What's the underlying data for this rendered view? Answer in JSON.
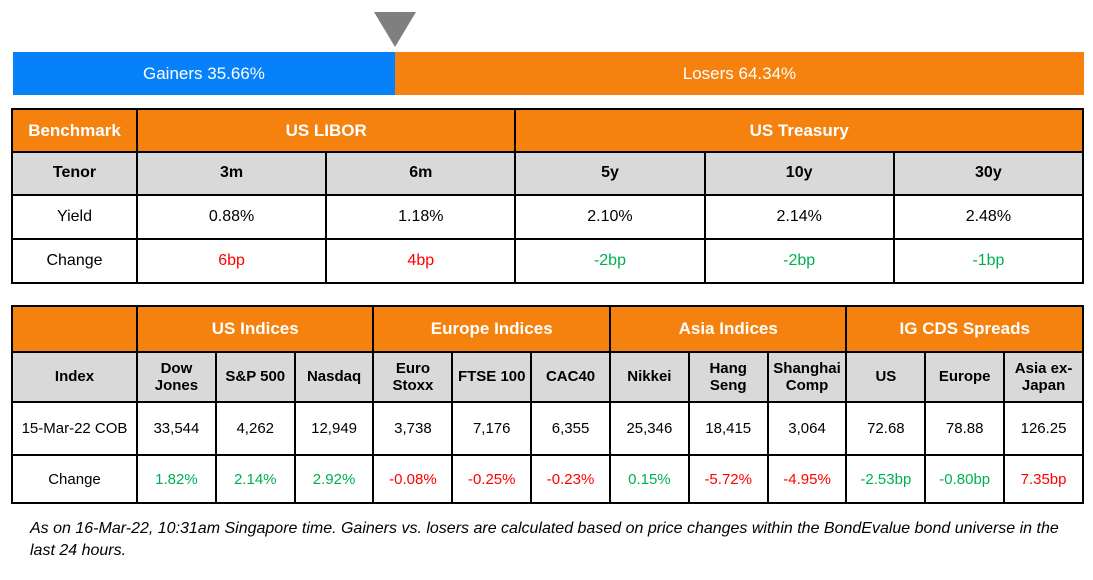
{
  "colors": {
    "gainers_blue": "#0681FA",
    "losers_orange": "#F5820E",
    "header_orange": "#F5820E",
    "subheader_gray": "#D9D9D9",
    "positive_green": "#00B050",
    "negative_red": "#FF0000",
    "marker_gray": "#7F7F7F"
  },
  "bar": {
    "gainers_label": "Gainers 35.66%",
    "losers_label": "Losers 64.34%",
    "gainers_pct": 35.66,
    "losers_pct": 64.34
  },
  "benchmark_table": {
    "corner_label": "Benchmark",
    "groups": [
      "US LIBOR",
      "US Treasury"
    ],
    "row_labels": {
      "tenor": "Tenor",
      "yield": "Yield",
      "change": "Change"
    },
    "tenors": [
      "3m",
      "6m",
      "5y",
      "10y",
      "30y"
    ],
    "yields": [
      "0.88%",
      "1.18%",
      "2.10%",
      "2.14%",
      "2.48%"
    ],
    "changes": [
      {
        "v": "6bp",
        "c": "red"
      },
      {
        "v": "4bp",
        "c": "red"
      },
      {
        "v": "-2bp",
        "c": "green"
      },
      {
        "v": "-2bp",
        "c": "green"
      },
      {
        "v": "-1bp",
        "c": "green"
      }
    ]
  },
  "markets_table": {
    "corner_label": "",
    "groups": [
      "US Indices",
      "Europe Indices",
      "Asia Indices",
      "IG CDS Spreads"
    ],
    "row_labels": {
      "index": "Index",
      "date": "15-Mar-22 COB",
      "change": "Change"
    },
    "columns": [
      "Dow Jones",
      "S&P 500",
      "Nasdaq",
      "Euro Stoxx",
      "FTSE 100",
      "CAC40",
      "Nikkei",
      "Hang Seng",
      "Shanghai Comp",
      "US",
      "Europe",
      "Asia ex-Japan"
    ],
    "values": [
      "33,544",
      "4,262",
      "12,949",
      "3,738",
      "7,176",
      "6,355",
      "25,346",
      "18,415",
      "3,064",
      "72.68",
      "78.88",
      "126.25"
    ],
    "changes": [
      {
        "v": "1.82%",
        "c": "green"
      },
      {
        "v": "2.14%",
        "c": "green"
      },
      {
        "v": "2.92%",
        "c": "green"
      },
      {
        "v": "-0.08%",
        "c": "red"
      },
      {
        "v": "-0.25%",
        "c": "red"
      },
      {
        "v": "-0.23%",
        "c": "red"
      },
      {
        "v": "0.15%",
        "c": "green"
      },
      {
        "v": "-5.72%",
        "c": "red"
      },
      {
        "v": "-4.95%",
        "c": "red"
      },
      {
        "v": "-2.53bp",
        "c": "green"
      },
      {
        "v": "-0.80bp",
        "c": "green"
      },
      {
        "v": "7.35bp",
        "c": "red"
      }
    ]
  },
  "footnote": "As on 16-Mar-22, 10:31am Singapore time. Gainers vs. losers are calculated based on price changes within the BondEvalue bond universe in the last 24 hours.",
  "chart_data": [
    {
      "type": "bar",
      "title": "Gainers vs Losers",
      "categories": [
        "Gainers",
        "Losers"
      ],
      "values": [
        35.66,
        64.34
      ],
      "unit": "%",
      "layout": "horizontal-stacked-100pct",
      "colors": [
        "#0681FA",
        "#F5820E"
      ],
      "annotations": [
        "marker triangle at 35.66% boundary"
      ]
    },
    {
      "type": "table",
      "title": "Benchmark",
      "column_groups": [
        {
          "label": "US LIBOR",
          "columns": [
            "3m",
            "6m"
          ]
        },
        {
          "label": "US Treasury",
          "columns": [
            "5y",
            "10y",
            "30y"
          ]
        }
      ],
      "columns": [
        "Tenor",
        "3m",
        "6m",
        "5y",
        "10y",
        "30y"
      ],
      "rows": [
        [
          "Yield",
          "0.88%",
          "1.18%",
          "2.10%",
          "2.14%",
          "2.48%"
        ],
        [
          "Change",
          "6bp",
          "4bp",
          "-2bp",
          "-2bp",
          "-1bp"
        ]
      ]
    },
    {
      "type": "table",
      "title": "Indices and IG CDS Spreads",
      "column_groups": [
        {
          "label": "US Indices",
          "columns": [
            "Dow Jones",
            "S&P 500",
            "Nasdaq"
          ]
        },
        {
          "label": "Europe Indices",
          "columns": [
            "Euro Stoxx",
            "FTSE 100",
            "CAC40"
          ]
        },
        {
          "label": "Asia Indices",
          "columns": [
            "Nikkei",
            "Hang Seng",
            "Shanghai Comp"
          ]
        },
        {
          "label": "IG CDS Spreads",
          "columns": [
            "US",
            "Europe",
            "Asia ex-Japan"
          ]
        }
      ],
      "columns": [
        "Index",
        "Dow Jones",
        "S&P 500",
        "Nasdaq",
        "Euro Stoxx",
        "FTSE 100",
        "CAC40",
        "Nikkei",
        "Hang Seng",
        "Shanghai Comp",
        "US",
        "Europe",
        "Asia ex-Japan"
      ],
      "rows": [
        [
          "15-Mar-22 COB",
          "33,544",
          "4,262",
          "12,949",
          "3,738",
          "7,176",
          "6,355",
          "25,346",
          "18,415",
          "3,064",
          "72.68",
          "78.88",
          "126.25"
        ],
        [
          "Change",
          "1.82%",
          "2.14%",
          "2.92%",
          "-0.08%",
          "-0.25%",
          "-0.23%",
          "0.15%",
          "-5.72%",
          "-4.95%",
          "-2.53bp",
          "-0.80bp",
          "7.35bp"
        ]
      ]
    }
  ]
}
